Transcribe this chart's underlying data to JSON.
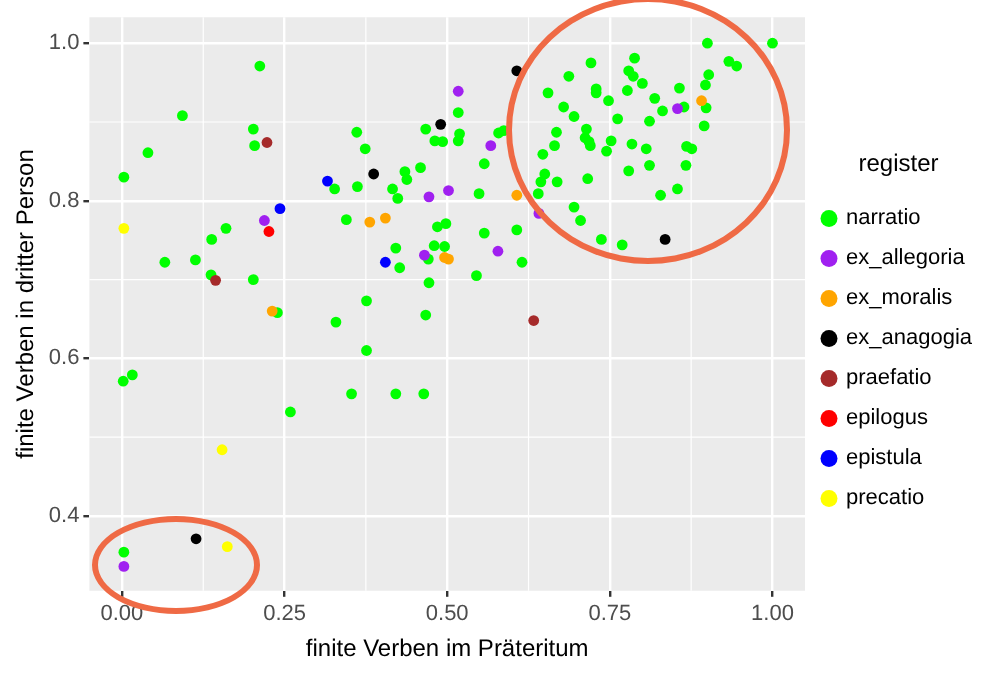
{
  "chart_data": {
    "type": "scatter",
    "xlabel": "finite Verben im Präteritum",
    "ylabel": "finite Verben in dritter Person",
    "legend_title": "register",
    "xlim": [
      -0.05,
      1.05
    ],
    "ylim": [
      0.305,
      1.033
    ],
    "xticks": [
      {
        "value": 0,
        "label": "0.00"
      },
      {
        "value": 0.25,
        "label": "0.25"
      },
      {
        "value": 0.5,
        "label": "0.50"
      },
      {
        "value": 0.75,
        "label": "0.75"
      },
      {
        "value": 1,
        "label": "1.00"
      }
    ],
    "yticks": [
      0.4,
      0.6,
      0.8,
      {
        "value": 1,
        "label": "1.0"
      }
    ],
    "grid": true,
    "legend": "right",
    "marker": "circle",
    "series": [
      {
        "name": "narratio",
        "color": "#00ff00",
        "x": [
          0.212,
          0.093,
          0.202,
          0.204,
          0.04,
          0.361,
          0.374,
          0.003,
          0.327,
          0.362,
          0.435,
          0.438,
          0.416,
          0.424,
          0.16,
          0.138,
          0.345,
          0.066,
          0.113,
          0.137,
          0.202,
          0.421,
          0.427,
          0.239,
          0.376,
          0.329,
          0.376,
          0.517,
          0.467,
          0.481,
          0.493,
          0.517,
          0.519,
          0.579,
          0.587,
          0.557,
          0.459,
          0.549,
          0.485,
          0.498,
          0.557,
          0.607,
          0.48,
          0.496,
          0.471,
          0.615,
          0.545,
          0.472,
          0.467,
          0.9,
          1.0,
          0.933,
          0.945,
          0.788,
          0.721,
          0.687,
          0.779,
          0.786,
          0.8,
          0.902,
          0.897,
          0.655,
          0.729,
          0.729,
          0.777,
          0.857,
          0.748,
          0.819,
          0.864,
          0.898,
          0.831,
          0.679,
          0.695,
          0.762,
          0.811,
          0.895,
          0.714,
          0.668,
          0.712,
          0.718,
          0.72,
          0.752,
          0.784,
          0.665,
          0.806,
          0.745,
          0.868,
          0.876,
          0.647,
          0.811,
          0.867,
          0.779,
          0.65,
          0.644,
          0.669,
          0.716,
          0.64,
          0.854,
          0.828,
          0.695,
          0.705,
          0.737,
          0.769,
          0.002,
          0.016,
          0.259,
          0.353,
          0.421,
          0.464,
          0.003
        ],
        "values": [
          0.971,
          0.908,
          0.891,
          0.87,
          0.861,
          0.887,
          0.866,
          0.83,
          0.815,
          0.818,
          0.837,
          0.827,
          0.815,
          0.803,
          0.765,
          0.751,
          0.776,
          0.722,
          0.725,
          0.706,
          0.7,
          0.74,
          0.715,
          0.658,
          0.673,
          0.646,
          0.61,
          0.912,
          0.891,
          0.876,
          0.875,
          0.876,
          0.885,
          0.886,
          0.889,
          0.847,
          0.842,
          0.809,
          0.767,
          0.771,
          0.759,
          0.763,
          0.743,
          0.742,
          0.726,
          0.722,
          0.705,
          0.696,
          0.655,
          1.0,
          1.0,
          0.977,
          0.971,
          0.981,
          0.975,
          0.958,
          0.965,
          0.958,
          0.949,
          0.96,
          0.947,
          0.937,
          0.942,
          0.937,
          0.94,
          0.943,
          0.927,
          0.93,
          0.919,
          0.918,
          0.914,
          0.919,
          0.907,
          0.904,
          0.901,
          0.895,
          0.891,
          0.887,
          0.88,
          0.875,
          0.87,
          0.876,
          0.872,
          0.87,
          0.866,
          0.863,
          0.869,
          0.866,
          0.859,
          0.845,
          0.845,
          0.838,
          0.834,
          0.824,
          0.824,
          0.828,
          0.809,
          0.815,
          0.807,
          0.792,
          0.775,
          0.751,
          0.744,
          0.571,
          0.579,
          0.532,
          0.555,
          0.555,
          0.555,
          0.354
        ]
      },
      {
        "name": "ex_allegoria",
        "color": "#a020f0",
        "x": [
          0.219,
          0.517,
          0.567,
          0.472,
          0.502,
          0.641,
          0.465,
          0.578,
          0.854,
          0.003
        ],
        "values": [
          0.775,
          0.939,
          0.87,
          0.805,
          0.813,
          0.784,
          0.731,
          0.736,
          0.917,
          0.336
        ]
      },
      {
        "name": "ex_moralis",
        "color": "#ffa500",
        "x": [
          0.381,
          0.405,
          0.231,
          0.607,
          0.496,
          0.502,
          0.891
        ],
        "values": [
          0.773,
          0.778,
          0.66,
          0.807,
          0.728,
          0.726,
          0.927
        ]
      },
      {
        "name": "ex_anagogia",
        "color": "#000000",
        "x": [
          0.387,
          0.607,
          0.49,
          0.835,
          0.114
        ],
        "values": [
          0.834,
          0.965,
          0.897,
          0.751,
          0.371
        ]
      },
      {
        "name": "praefatio",
        "color": "#a52a2a",
        "x": [
          0.223,
          0.144,
          0.633
        ],
        "values": [
          0.874,
          0.699,
          0.648
        ]
      },
      {
        "name": "epilogus",
        "color": "#ff0000",
        "x": [
          0.226
        ],
        "values": [
          0.761
        ]
      },
      {
        "name": "epistula",
        "color": "#0000ff",
        "x": [
          0.316,
          0.243,
          0.405
        ],
        "values": [
          0.825,
          0.79,
          0.722
        ]
      },
      {
        "name": "precatio",
        "color": "#ffff00",
        "x": [
          0.003,
          0.154,
          0.162
        ],
        "values": [
          0.765,
          0.484,
          0.361
        ]
      }
    ]
  }
}
